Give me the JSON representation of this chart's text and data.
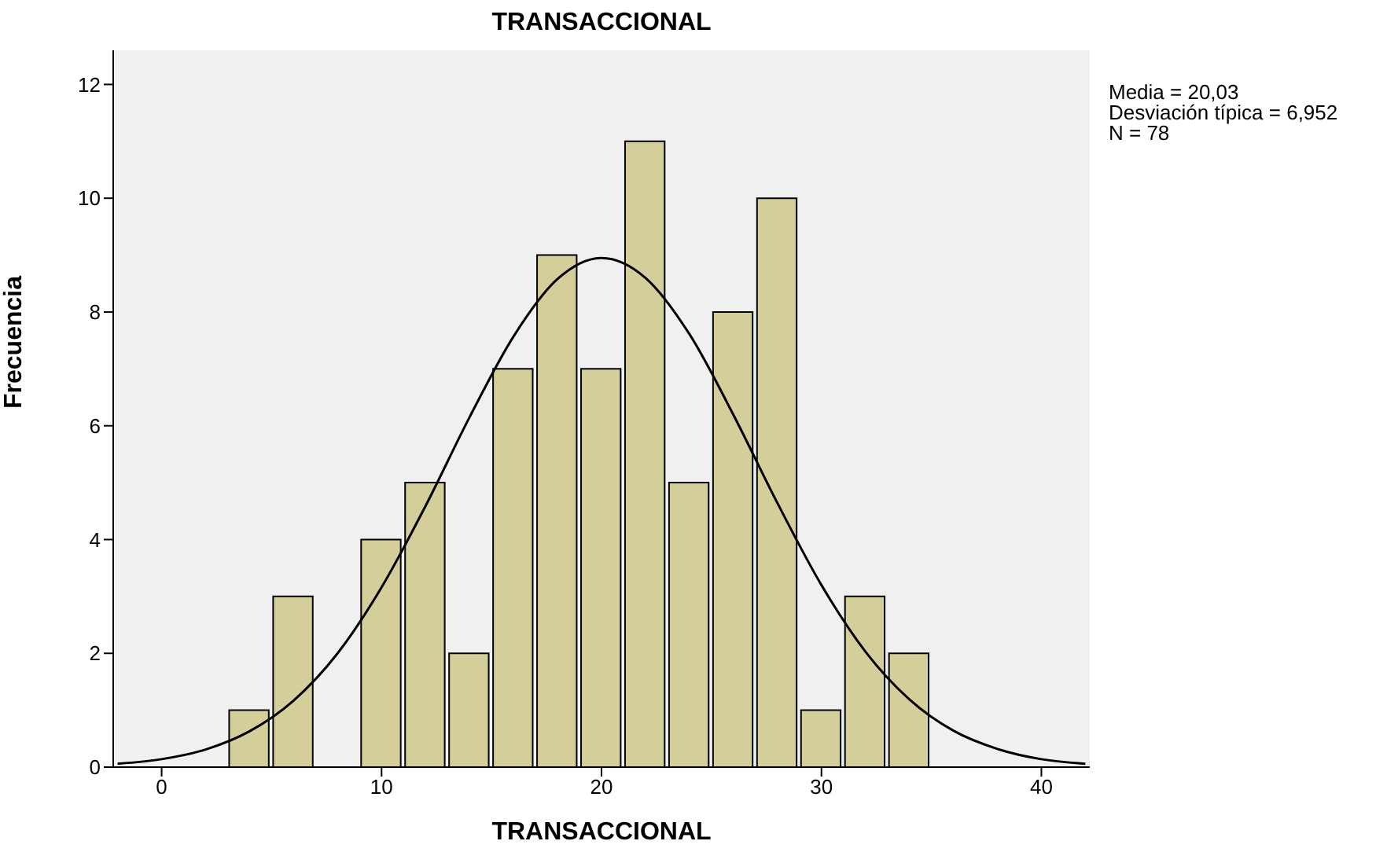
{
  "chart_data": {
    "type": "histogram",
    "title": "TRANSACCIONAL",
    "xlabel": "TRANSACCIONAL",
    "ylabel": "Frecuencia",
    "annotations": [
      "Media = 20,03",
      "Desviación típica = 6,952",
      "N = 78"
    ],
    "bins": [
      3,
      5,
      7,
      9,
      11,
      13,
      15,
      17,
      19,
      21,
      23,
      25,
      27,
      29,
      31,
      33,
      35
    ],
    "values": [
      1,
      3,
      0,
      4,
      5,
      2,
      7,
      9,
      7,
      11,
      5,
      8,
      10,
      1,
      3,
      2
    ],
    "color": "#d3ce9a",
    "series": [
      {
        "type": "line",
        "color": "#000000",
        "x": [
          -2,
          0,
          2,
          4,
          6,
          8,
          10,
          12,
          14,
          16,
          18,
          20,
          22,
          24,
          26,
          28,
          30,
          32,
          34,
          36,
          38,
          40,
          42
        ],
        "values": [
          0.06,
          0.14,
          0.31,
          0.63,
          1.17,
          2.0,
          3.16,
          4.59,
          6.15,
          7.57,
          8.58,
          8.95,
          8.6,
          7.61,
          6.19,
          4.64,
          3.2,
          2.03,
          1.19,
          0.64,
          0.32,
          0.14,
          0.06
        ]
      }
    ],
    "xlim": [
      -2.2,
      42.2
    ],
    "xticks": [
      0,
      10,
      20,
      30,
      40
    ],
    "ylim": [
      0,
      12.6
    ],
    "yticks": [
      0,
      2,
      4,
      6,
      8,
      10,
      12
    ],
    "grid": false,
    "legend": false
  }
}
